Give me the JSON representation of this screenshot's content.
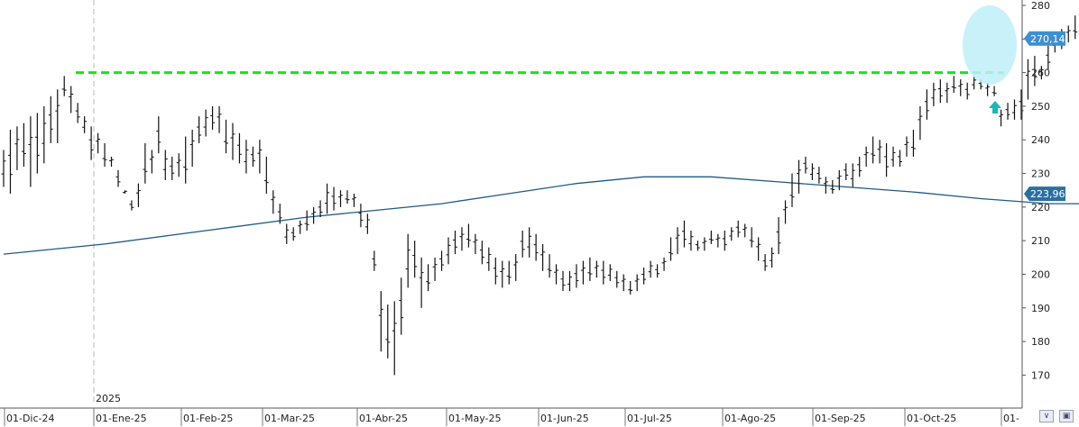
{
  "chart_data": {
    "type": "candlestick-ohlc",
    "year_label": "2025",
    "x_ticks": [
      "01-Dic-24",
      "01-Ene-25",
      "01-Feb-25",
      "01-Mar-25",
      "01-Abr-25",
      "01-May-25",
      "01-Jun-25",
      "01-Jul-25",
      "01-Ago-25",
      "01-Sep-25",
      "01-Oct-25",
      "01-"
    ],
    "y_ticks": [
      170,
      180,
      190,
      200,
      210,
      220,
      230,
      240,
      250,
      260,
      270,
      280
    ],
    "ylim": [
      165,
      281
    ],
    "last_price": {
      "value": 270.14,
      "label": "270,14"
    },
    "moving_average": {
      "last_value": 223.96,
      "label": "223,96",
      "points": [
        [
          0,
          206
        ],
        [
          15,
          209
        ],
        [
          30,
          213
        ],
        [
          45,
          217
        ],
        [
          60,
          220
        ],
        [
          65,
          221
        ],
        [
          75,
          224
        ],
        [
          85,
          227
        ],
        [
          95,
          229
        ],
        [
          105,
          229
        ],
        [
          115,
          227.5
        ],
        [
          125,
          226
        ],
        [
          135,
          224.5
        ],
        [
          145,
          222.5
        ],
        [
          155,
          221
        ],
        [
          165,
          221
        ],
        [
          175,
          221.5
        ],
        [
          185,
          222
        ],
        [
          195,
          222.5
        ],
        [
          205,
          222.5
        ],
        [
          215,
          222
        ],
        [
          222,
          223.96
        ]
      ]
    },
    "resistance_level": 260,
    "bars": [
      [
        237,
        226
      ],
      [
        243,
        224
      ],
      [
        244,
        231
      ],
      [
        245,
        232
      ],
      [
        247,
        226
      ],
      [
        248,
        230
      ],
      [
        250,
        233
      ],
      [
        253,
        239
      ],
      [
        255,
        239
      ],
      [
        259,
        253
      ],
      [
        256,
        248
      ],
      [
        251,
        245
      ],
      [
        247,
        242
      ],
      [
        244,
        234
      ],
      [
        242,
        236
      ],
      [
        239,
        232
      ],
      [
        235,
        232
      ],
      [
        231,
        226
      ],
      [
        225,
        224
      ],
      [
        222,
        219
      ],
      [
        227,
        220
      ],
      [
        239,
        227
      ],
      [
        237,
        230
      ],
      [
        247,
        236
      ],
      [
        237,
        228
      ],
      [
        235,
        228
      ],
      [
        236,
        229
      ],
      [
        241,
        227
      ],
      [
        243,
        232
      ],
      [
        247,
        239
      ],
      [
        249,
        241
      ],
      [
        250,
        243
      ],
      [
        250,
        242
      ],
      [
        246,
        236
      ],
      [
        245,
        234
      ],
      [
        242,
        233
      ],
      [
        240,
        230
      ],
      [
        238,
        232
      ],
      [
        240,
        230
      ],
      [
        235,
        224
      ],
      [
        225,
        218
      ],
      [
        221,
        215
      ],
      [
        215,
        209
      ],
      [
        214,
        210
      ],
      [
        216,
        212
      ],
      [
        219,
        213
      ],
      [
        220,
        215
      ],
      [
        222,
        217
      ],
      [
        227,
        218
      ],
      [
        226,
        219
      ],
      [
        225,
        220
      ],
      [
        225,
        221
      ],
      [
        224,
        220
      ],
      [
        221,
        214
      ],
      [
        218,
        212
      ],
      [
        207,
        201
      ],
      [
        195,
        177
      ],
      [
        191,
        175
      ],
      [
        192,
        170
      ],
      [
        199,
        182
      ],
      [
        212,
        196
      ],
      [
        210,
        199
      ],
      [
        205,
        190
      ],
      [
        203,
        195
      ],
      [
        205,
        198
      ],
      [
        207,
        201
      ],
      [
        211,
        203
      ],
      [
        213,
        206
      ],
      [
        214,
        207
      ],
      [
        215,
        208
      ],
      [
        212,
        206
      ],
      [
        210,
        203
      ],
      [
        208,
        201
      ],
      [
        205,
        197
      ],
      [
        204,
        196
      ],
      [
        204,
        197
      ],
      [
        206,
        198
      ],
      [
        213,
        205
      ],
      [
        214,
        205
      ],
      [
        212,
        204
      ],
      [
        209,
        201
      ],
      [
        206,
        199
      ],
      [
        203,
        197
      ],
      [
        201,
        195
      ],
      [
        201,
        195
      ],
      [
        203,
        196
      ],
      [
        204,
        197
      ],
      [
        205,
        198
      ],
      [
        204,
        199
      ],
      [
        204,
        197
      ],
      [
        203,
        198
      ],
      [
        201,
        196
      ],
      [
        200,
        195
      ],
      [
        198,
        194
      ],
      [
        200,
        195
      ],
      [
        202,
        197
      ],
      [
        204,
        199
      ],
      [
        203,
        199
      ],
      [
        205,
        201
      ],
      [
        211,
        204
      ],
      [
        214,
        206
      ],
      [
        216,
        208
      ],
      [
        213,
        207
      ],
      [
        210,
        207
      ],
      [
        211,
        207
      ],
      [
        213,
        209
      ],
      [
        212,
        208
      ],
      [
        213,
        207
      ],
      [
        214,
        210
      ],
      [
        216,
        211
      ],
      [
        215,
        211
      ],
      [
        214,
        208
      ],
      [
        211,
        204
      ],
      [
        206,
        201
      ],
      [
        208,
        202
      ],
      [
        217,
        206
      ],
      [
        222,
        215
      ],
      [
        230,
        220
      ],
      [
        234,
        224
      ],
      [
        235,
        230
      ],
      [
        233,
        228
      ],
      [
        232,
        227
      ],
      [
        229,
        224
      ],
      [
        228,
        224
      ],
      [
        231,
        225
      ],
      [
        233,
        228
      ],
      [
        233,
        226
      ],
      [
        235,
        229
      ],
      [
        238,
        232
      ],
      [
        241,
        233
      ],
      [
        240,
        233
      ],
      [
        239,
        229
      ],
      [
        238,
        232
      ],
      [
        237,
        232
      ],
      [
        241,
        235
      ],
      [
        243,
        235
      ],
      [
        250,
        240
      ],
      [
        255,
        246
      ],
      [
        257,
        250
      ],
      [
        258,
        251
      ],
      [
        257,
        251
      ],
      [
        259,
        254
      ],
      [
        258,
        253
      ],
      [
        257,
        252
      ],
      [
        259,
        255
      ],
      [
        258,
        255
      ],
      [
        257,
        253
      ],
      [
        256,
        253
      ],
      [
        249,
        244
      ],
      [
        251,
        246
      ],
      [
        252,
        246
      ],
      [
        255,
        246
      ],
      [
        264,
        252
      ],
      [
        265,
        256
      ],
      [
        262,
        258
      ],
      [
        268,
        261
      ],
      [
        272,
        266
      ],
      [
        273,
        267
      ],
      [
        274,
        269
      ],
      [
        277,
        270
      ],
      [
        275,
        268
      ],
      [
        271,
        266
      ],
      [
        273,
        268
      ]
    ]
  }
}
